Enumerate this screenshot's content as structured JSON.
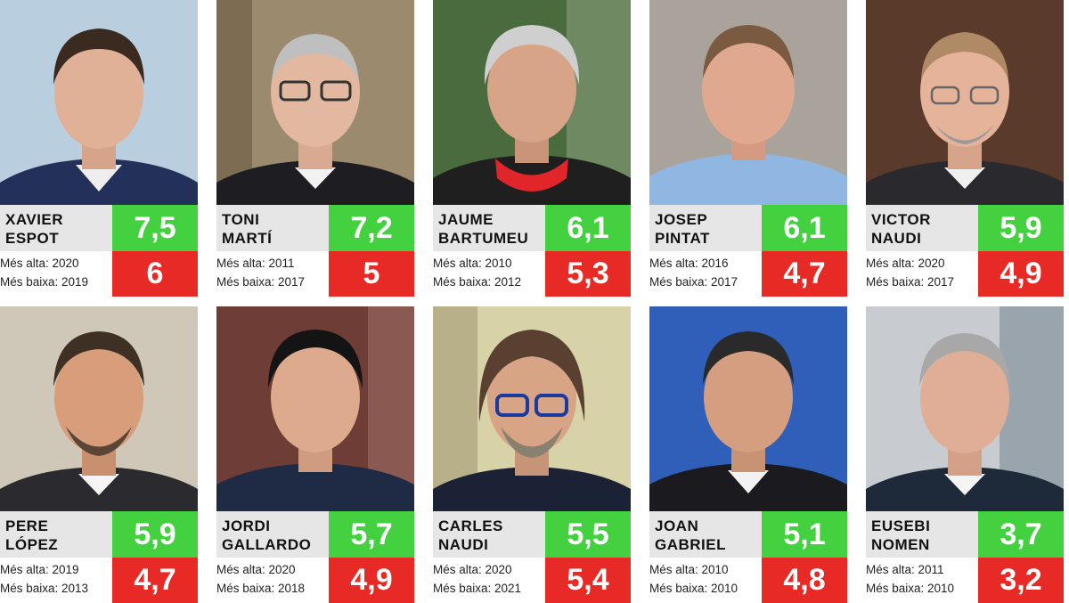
{
  "labels": {
    "high_prefix": "Més alta:",
    "low_prefix": "Més baixa:"
  },
  "colors": {
    "high_bg": "#43d13f",
    "low_bg": "#e82a26",
    "name_bg": "#e6e6e6"
  },
  "people": [
    {
      "name_line1": "XAVIER",
      "name_line2": "ESPOT",
      "highest": "7,5",
      "lowest": "6",
      "high_text": "Més alta: 2020",
      "low_text": "Més baixa: 2019"
    },
    {
      "name_line1": "TONI",
      "name_line2": "MARTÍ",
      "highest": "7,2",
      "lowest": "5",
      "high_text": "Més alta: 2011",
      "low_text": "Més baixa: 2017"
    },
    {
      "name_line1": "JAUME",
      "name_line2": "BARTUMEU",
      "highest": "6,1",
      "lowest": "5,3",
      "high_text": "Més alta: 2010",
      "low_text": "Més baixa: 2012"
    },
    {
      "name_line1": "JOSEP",
      "name_line2": "PINTAT",
      "highest": "6,1",
      "lowest": "4,7",
      "high_text": "Més alta: 2016",
      "low_text": "Més baixa: 2017"
    },
    {
      "name_line1": "VICTOR",
      "name_line2": "NAUDI",
      "highest": "5,9",
      "lowest": "4,9",
      "high_text": "Més alta: 2020",
      "low_text": "Més baixa: 2017"
    },
    {
      "name_line1": "PERE",
      "name_line2": "LÓPEZ",
      "highest": "5,9",
      "lowest": "4,7",
      "high_text": "Més alta: 2019",
      "low_text": "Més baixa: 2013"
    },
    {
      "name_line1": "JORDI",
      "name_line2": "GALLARDO",
      "highest": "5,7",
      "lowest": "4,9",
      "high_text": "Més alta: 2020",
      "low_text": "Més baixa: 2018"
    },
    {
      "name_line1": "CARLES",
      "name_line2": "NAUDI",
      "highest": "5,5",
      "lowest": "5,4",
      "high_text": "Més alta: 2020",
      "low_text": "Més baixa: 2021"
    },
    {
      "name_line1": "JOAN",
      "name_line2": "GABRIEL",
      "highest": "5,1",
      "lowest": "4,8",
      "high_text": "Més alta: 2010",
      "low_text": "Més baixa: 2010"
    },
    {
      "name_line1": "EUSEBI",
      "name_line2": "NOMEN",
      "highest": "3,7",
      "lowest": "3,2",
      "high_text": "Més alta: 2011",
      "low_text": "Més baixa: 2010"
    }
  ]
}
